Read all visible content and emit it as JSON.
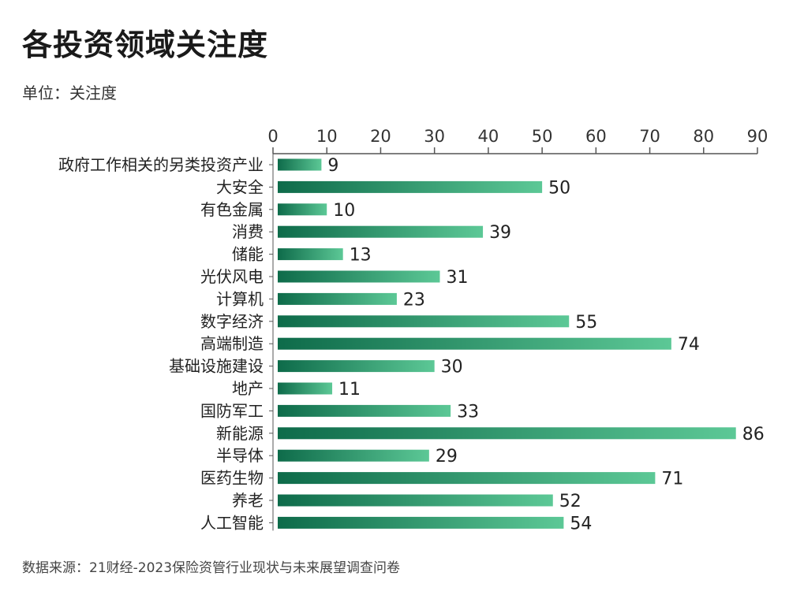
{
  "header": {
    "title": "各投资领域关注度",
    "unit": "单位：关注度"
  },
  "footer": {
    "source": "数据来源：21财经-2023保险资管行业现状与未来展望调查问卷"
  },
  "colors": {
    "bar_start": "#0e6b4a",
    "bar_end": "#5cc896",
    "axis": "#555555",
    "text": "#222222"
  },
  "chart_data": {
    "type": "bar",
    "orientation": "horizontal",
    "title": "各投资领域关注度",
    "subtitle": "单位：关注度",
    "xlim": [
      0,
      90
    ],
    "ticks": [
      0,
      10,
      20,
      30,
      40,
      50,
      60,
      70,
      80,
      90
    ],
    "axis_position": "top",
    "grid": false,
    "categories": [
      "政府工作相关的另类投资产业",
      "大安全",
      "有色金属",
      "消费",
      "储能",
      "光伏风电",
      "计算机",
      "数字经济",
      "高端制造",
      "基础设施建设",
      "地产",
      "国防军工",
      "新能源",
      "半导体",
      "医药生物",
      "养老",
      "人工智能"
    ],
    "values": [
      9,
      50,
      10,
      39,
      13,
      31,
      23,
      55,
      74,
      30,
      11,
      33,
      86,
      29,
      71,
      52,
      54
    ]
  }
}
